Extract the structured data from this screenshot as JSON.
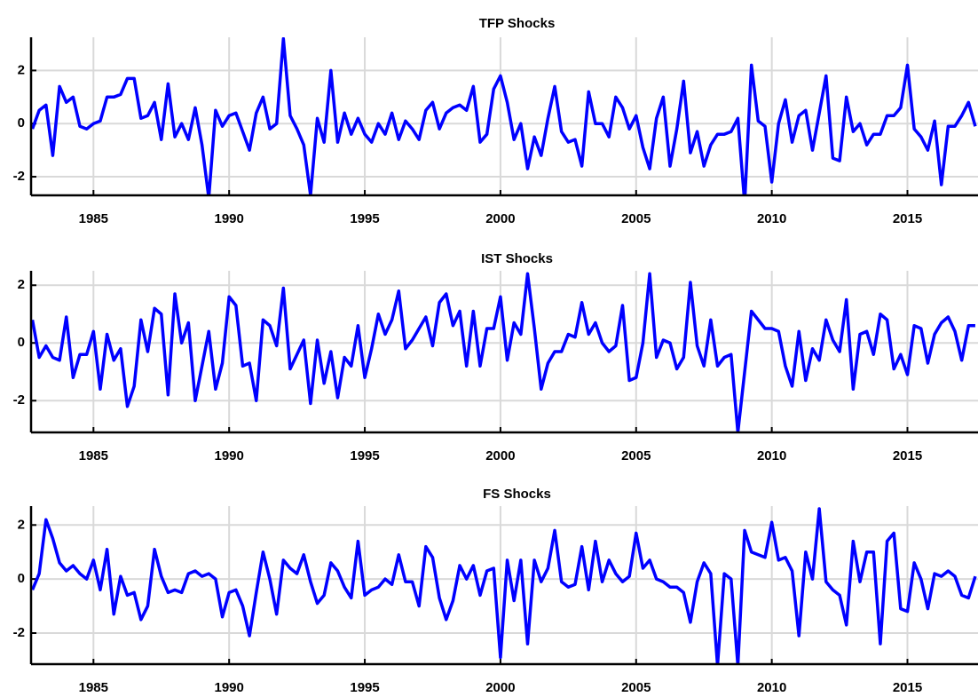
{
  "chart_data": [
    {
      "type": "line",
      "title": "TFP Shocks",
      "color": "#0000ff",
      "grid": true,
      "xlim": [
        1982.7,
        2017.6
      ],
      "xticks": [
        1985,
        1990,
        1995,
        2000,
        2005,
        2010,
        2015
      ],
      "ylim": [
        -2.7,
        3.25
      ],
      "yticks": [
        -2,
        0,
        2
      ],
      "x": [
        1982.75,
        1983,
        1983.25,
        1983.5,
        1983.75,
        1984,
        1984.25,
        1984.5,
        1984.75,
        1985,
        1985.25,
        1985.5,
        1985.75,
        1986,
        1986.25,
        1986.5,
        1986.75,
        1987,
        1987.25,
        1987.5,
        1987.75,
        1988,
        1988.25,
        1988.5,
        1988.75,
        1989,
        1989.25,
        1989.5,
        1989.75,
        1990,
        1990.25,
        1990.5,
        1990.75,
        1991,
        1991.25,
        1991.5,
        1991.75,
        1992,
        1992.25,
        1992.5,
        1992.75,
        1993,
        1993.25,
        1993.5,
        1993.75,
        1994,
        1994.25,
        1994.5,
        1994.75,
        1995,
        1995.25,
        1995.5,
        1995.75,
        1996,
        1996.25,
        1996.5,
        1996.75,
        1997,
        1997.25,
        1997.5,
        1997.75,
        1998,
        1998.25,
        1998.5,
        1998.75,
        1999,
        1999.25,
        1999.5,
        1999.75,
        2000,
        2000.25,
        2000.5,
        2000.75,
        2001,
        2001.25,
        2001.5,
        2001.75,
        2002,
        2002.25,
        2002.5,
        2002.75,
        2003,
        2003.25,
        2003.5,
        2003.75,
        2004,
        2004.25,
        2004.5,
        2004.75,
        2005,
        2005.25,
        2005.5,
        2005.75,
        2006,
        2006.25,
        2006.5,
        2006.75,
        2007,
        2007.25,
        2007.5,
        2007.75,
        2008,
        2008.25,
        2008.5,
        2008.75,
        2009,
        2009.25,
        2009.5,
        2009.75,
        2010,
        2010.25,
        2010.5,
        2010.75,
        2011,
        2011.25,
        2011.5,
        2011.75,
        2012,
        2012.25,
        2012.5,
        2012.75,
        2013,
        2013.25,
        2013.5,
        2013.75,
        2014,
        2014.25,
        2014.5,
        2014.75,
        2015,
        2015.25,
        2015.5,
        2015.75,
        2016,
        2016.25,
        2016.5,
        2016.75,
        2017,
        2017.25,
        2017.5
      ],
      "values": [
        -0.2,
        0.5,
        0.7,
        -1.2,
        1.4,
        0.8,
        1.0,
        -0.1,
        -0.2,
        0.0,
        0.1,
        1.0,
        1.0,
        1.1,
        1.7,
        1.7,
        0.2,
        0.3,
        0.8,
        -0.6,
        1.5,
        -0.5,
        0.0,
        -0.6,
        0.6,
        -0.8,
        -2.8,
        0.5,
        -0.1,
        0.3,
        0.4,
        -0.3,
        -1.0,
        0.4,
        1.0,
        -0.2,
        0.0,
        3.2,
        0.3,
        -0.2,
        -0.8,
        -2.7,
        0.2,
        -0.7,
        2.0,
        -0.7,
        0.4,
        -0.4,
        0.2,
        -0.4,
        -0.7,
        0.0,
        -0.4,
        0.4,
        -0.6,
        0.1,
        -0.2,
        -0.6,
        0.5,
        0.8,
        -0.2,
        0.4,
        0.6,
        0.7,
        0.5,
        1.4,
        -0.7,
        -0.4,
        1.3,
        1.8,
        0.8,
        -0.6,
        0.0,
        -1.7,
        -0.5,
        -1.2,
        0.2,
        1.4,
        -0.3,
        -0.7,
        -0.6,
        -1.6,
        1.2,
        0.0,
        0.0,
        -0.5,
        1.0,
        0.6,
        -0.2,
        0.3,
        -0.9,
        -1.7,
        0.2,
        1.0,
        -1.6,
        -0.2,
        1.6,
        -1.1,
        -0.3,
        -1.6,
        -0.8,
        -0.4,
        -0.4,
        -0.3,
        0.2,
        -3.0,
        2.2,
        0.1,
        -0.1,
        -2.2,
        0.0,
        0.9,
        -0.7,
        0.3,
        0.5,
        -1.0,
        0.4,
        1.8,
        -1.3,
        -1.4,
        1.0,
        -0.3,
        0.0,
        -0.8,
        -0.4,
        -0.4,
        0.3,
        0.3,
        0.6,
        2.2,
        -0.2,
        -0.5,
        -1.0,
        0.1,
        -2.3,
        -0.1,
        -0.1,
        0.3,
        0.8,
        -0.1
      ]
    },
    {
      "type": "line",
      "title": "IST Shocks",
      "color": "#0000ff",
      "grid": true,
      "xlim": [
        1982.7,
        2017.6
      ],
      "xticks": [
        1985,
        1990,
        1995,
        2000,
        2005,
        2010,
        2015
      ],
      "ylim": [
        -3.1,
        2.5
      ],
      "yticks": [
        -2,
        0,
        2
      ],
      "x": [
        1982.75,
        1983,
        1983.25,
        1983.5,
        1983.75,
        1984,
        1984.25,
        1984.5,
        1984.75,
        1985,
        1985.25,
        1985.5,
        1985.75,
        1986,
        1986.25,
        1986.5,
        1986.75,
        1987,
        1987.25,
        1987.5,
        1987.75,
        1988,
        1988.25,
        1988.5,
        1988.75,
        1989,
        1989.25,
        1989.5,
        1989.75,
        1990,
        1990.25,
        1990.5,
        1990.75,
        1991,
        1991.25,
        1991.5,
        1991.75,
        1992,
        1992.25,
        1992.5,
        1992.75,
        1993,
        1993.25,
        1993.5,
        1993.75,
        1994,
        1994.25,
        1994.5,
        1994.75,
        1995,
        1995.25,
        1995.5,
        1995.75,
        1996,
        1996.25,
        1996.5,
        1996.75,
        1997,
        1997.25,
        1997.5,
        1997.75,
        1998,
        1998.25,
        1998.5,
        1998.75,
        1999,
        1999.25,
        1999.5,
        1999.75,
        2000,
        2000.25,
        2000.5,
        2000.75,
        2001,
        2001.25,
        2001.5,
        2001.75,
        2002,
        2002.25,
        2002.5,
        2002.75,
        2003,
        2003.25,
        2003.5,
        2003.75,
        2004,
        2004.25,
        2004.5,
        2004.75,
        2005,
        2005.25,
        2005.5,
        2005.75,
        2006,
        2006.25,
        2006.5,
        2006.75,
        2007,
        2007.25,
        2007.5,
        2007.75,
        2008,
        2008.25,
        2008.5,
        2008.75,
        2009,
        2009.25,
        2009.5,
        2009.75,
        2010,
        2010.25,
        2010.5,
        2010.75,
        2011,
        2011.25,
        2011.5,
        2011.75,
        2012,
        2012.25,
        2012.5,
        2012.75,
        2013,
        2013.25,
        2013.5,
        2013.75,
        2014,
        2014.25,
        2014.5,
        2014.75,
        2015,
        2015.25,
        2015.5,
        2015.75,
        2016,
        2016.25,
        2016.5,
        2016.75,
        2017,
        2017.25,
        2017.5
      ],
      "values": [
        0.8,
        -0.5,
        -0.1,
        -0.5,
        -0.6,
        0.9,
        -1.2,
        -0.4,
        -0.4,
        0.4,
        -1.6,
        0.3,
        -0.6,
        -0.2,
        -2.2,
        -1.5,
        0.8,
        -0.3,
        1.2,
        1.0,
        -1.8,
        1.7,
        0.0,
        0.7,
        -2.0,
        -0.8,
        0.4,
        -1.6,
        -0.7,
        1.6,
        1.3,
        -0.8,
        -0.7,
        -2.0,
        0.8,
        0.6,
        -0.1,
        1.9,
        -0.9,
        -0.4,
        0.1,
        -2.1,
        0.1,
        -1.4,
        -0.3,
        -1.9,
        -0.5,
        -0.8,
        0.6,
        -1.2,
        -0.2,
        1.0,
        0.3,
        0.8,
        1.8,
        -0.2,
        0.1,
        0.5,
        0.9,
        -0.1,
        1.4,
        1.7,
        0.6,
        1.1,
        -0.8,
        1.1,
        -0.8,
        0.5,
        0.5,
        1.6,
        -0.6,
        0.7,
        0.3,
        2.4,
        0.5,
        -1.6,
        -0.7,
        -0.3,
        -0.3,
        0.3,
        0.2,
        1.4,
        0.3,
        0.7,
        0.0,
        -0.3,
        -0.1,
        1.3,
        -1.3,
        -1.2,
        0.0,
        2.4,
        -0.5,
        0.1,
        0.0,
        -0.9,
        -0.5,
        2.1,
        -0.1,
        -0.8,
        0.8,
        -0.8,
        -0.5,
        -0.4,
        -3.1,
        -1.0,
        1.1,
        0.8,
        0.5,
        0.5,
        0.4,
        -0.8,
        -1.5,
        0.4,
        -1.3,
        -0.2,
        -0.6,
        0.8,
        0.1,
        -0.3,
        1.5,
        -1.6,
        0.3,
        0.4,
        -0.4,
        1.0,
        0.8,
        -0.9,
        -0.4,
        -1.1,
        0.6,
        0.5,
        -0.7,
        0.3,
        0.7,
        0.9,
        0.4,
        -0.6,
        0.6,
        0.6
      ]
    },
    {
      "type": "line",
      "title": "FS Shocks",
      "color": "#0000ff",
      "grid": true,
      "xlim": [
        1982.7,
        2017.6
      ],
      "xticks": [
        1985,
        1990,
        1995,
        2000,
        2005,
        2010,
        2015
      ],
      "ylim": [
        -3.15,
        2.7
      ],
      "yticks": [
        -2,
        0,
        2
      ],
      "x": [
        1982.75,
        1983,
        1983.25,
        1983.5,
        1983.75,
        1984,
        1984.25,
        1984.5,
        1984.75,
        1985,
        1985.25,
        1985.5,
        1985.75,
        1986,
        1986.25,
        1986.5,
        1986.75,
        1987,
        1987.25,
        1987.5,
        1987.75,
        1988,
        1988.25,
        1988.5,
        1988.75,
        1989,
        1989.25,
        1989.5,
        1989.75,
        1990,
        1990.25,
        1990.5,
        1990.75,
        1991,
        1991.25,
        1991.5,
        1991.75,
        1992,
        1992.25,
        1992.5,
        1992.75,
        1993,
        1993.25,
        1993.5,
        1993.75,
        1994,
        1994.25,
        1994.5,
        1994.75,
        1995,
        1995.25,
        1995.5,
        1995.75,
        1996,
        1996.25,
        1996.5,
        1996.75,
        1997,
        1997.25,
        1997.5,
        1997.75,
        1998,
        1998.25,
        1998.5,
        1998.75,
        1999,
        1999.25,
        1999.5,
        1999.75,
        2000,
        2000.25,
        2000.5,
        2000.75,
        2001,
        2001.25,
        2001.5,
        2001.75,
        2002,
        2002.25,
        2002.5,
        2002.75,
        2003,
        2003.25,
        2003.5,
        2003.75,
        2004,
        2004.25,
        2004.5,
        2004.75,
        2005,
        2005.25,
        2005.5,
        2005.75,
        2006,
        2006.25,
        2006.5,
        2006.75,
        2007,
        2007.25,
        2007.5,
        2007.75,
        2008,
        2008.25,
        2008.5,
        2008.75,
        2009,
        2009.25,
        2009.5,
        2009.75,
        2010,
        2010.25,
        2010.5,
        2010.75,
        2011,
        2011.25,
        2011.5,
        2011.75,
        2012,
        2012.25,
        2012.5,
        2012.75,
        2013,
        2013.25,
        2013.5,
        2013.75,
        2014,
        2014.25,
        2014.5,
        2014.75,
        2015,
        2015.25,
        2015.5,
        2015.75,
        2016,
        2016.25,
        2016.5,
        2016.75,
        2017,
        2017.25,
        2017.5
      ],
      "values": [
        -0.4,
        0.2,
        2.2,
        1.5,
        0.6,
        0.3,
        0.5,
        0.2,
        0.0,
        0.7,
        -0.4,
        1.1,
        -1.3,
        0.1,
        -0.6,
        -0.5,
        -1.5,
        -1.0,
        1.1,
        0.1,
        -0.5,
        -0.4,
        -0.5,
        0.2,
        0.3,
        0.1,
        0.2,
        0.0,
        -1.4,
        -0.5,
        -0.4,
        -1.0,
        -2.1,
        -0.5,
        1.0,
        0.0,
        -1.3,
        0.7,
        0.4,
        0.2,
        0.9,
        -0.1,
        -0.9,
        -0.6,
        0.6,
        0.3,
        -0.3,
        -0.7,
        1.4,
        -0.6,
        -0.4,
        -0.3,
        0.0,
        -0.2,
        0.9,
        -0.1,
        -0.1,
        -1.0,
        1.2,
        0.8,
        -0.7,
        -1.5,
        -0.8,
        0.5,
        0.0,
        0.5,
        -0.6,
        0.3,
        0.4,
        -2.9,
        0.7,
        -0.8,
        0.7,
        -2.4,
        0.7,
        -0.1,
        0.4,
        1.8,
        -0.1,
        -0.3,
        -0.2,
        1.2,
        -0.4,
        1.4,
        -0.1,
        0.7,
        0.2,
        -0.1,
        0.1,
        1.7,
        0.4,
        0.7,
        0.0,
        -0.1,
        -0.3,
        -0.3,
        -0.5,
        -1.6,
        -0.1,
        0.6,
        0.2,
        -3.2,
        0.2,
        0.0,
        -3.2,
        1.8,
        1.0,
        0.9,
        0.8,
        2.1,
        0.7,
        0.8,
        0.3,
        -2.1,
        1.0,
        0.0,
        2.6,
        -0.1,
        -0.4,
        -0.6,
        -1.7,
        1.4,
        -0.1,
        1.0,
        1.0,
        -2.4,
        1.4,
        1.7,
        -1.1,
        -1.2,
        0.6,
        0.0,
        -1.1,
        0.2,
        0.1,
        0.3,
        0.1,
        -0.6,
        -0.7,
        0.1
      ]
    }
  ]
}
